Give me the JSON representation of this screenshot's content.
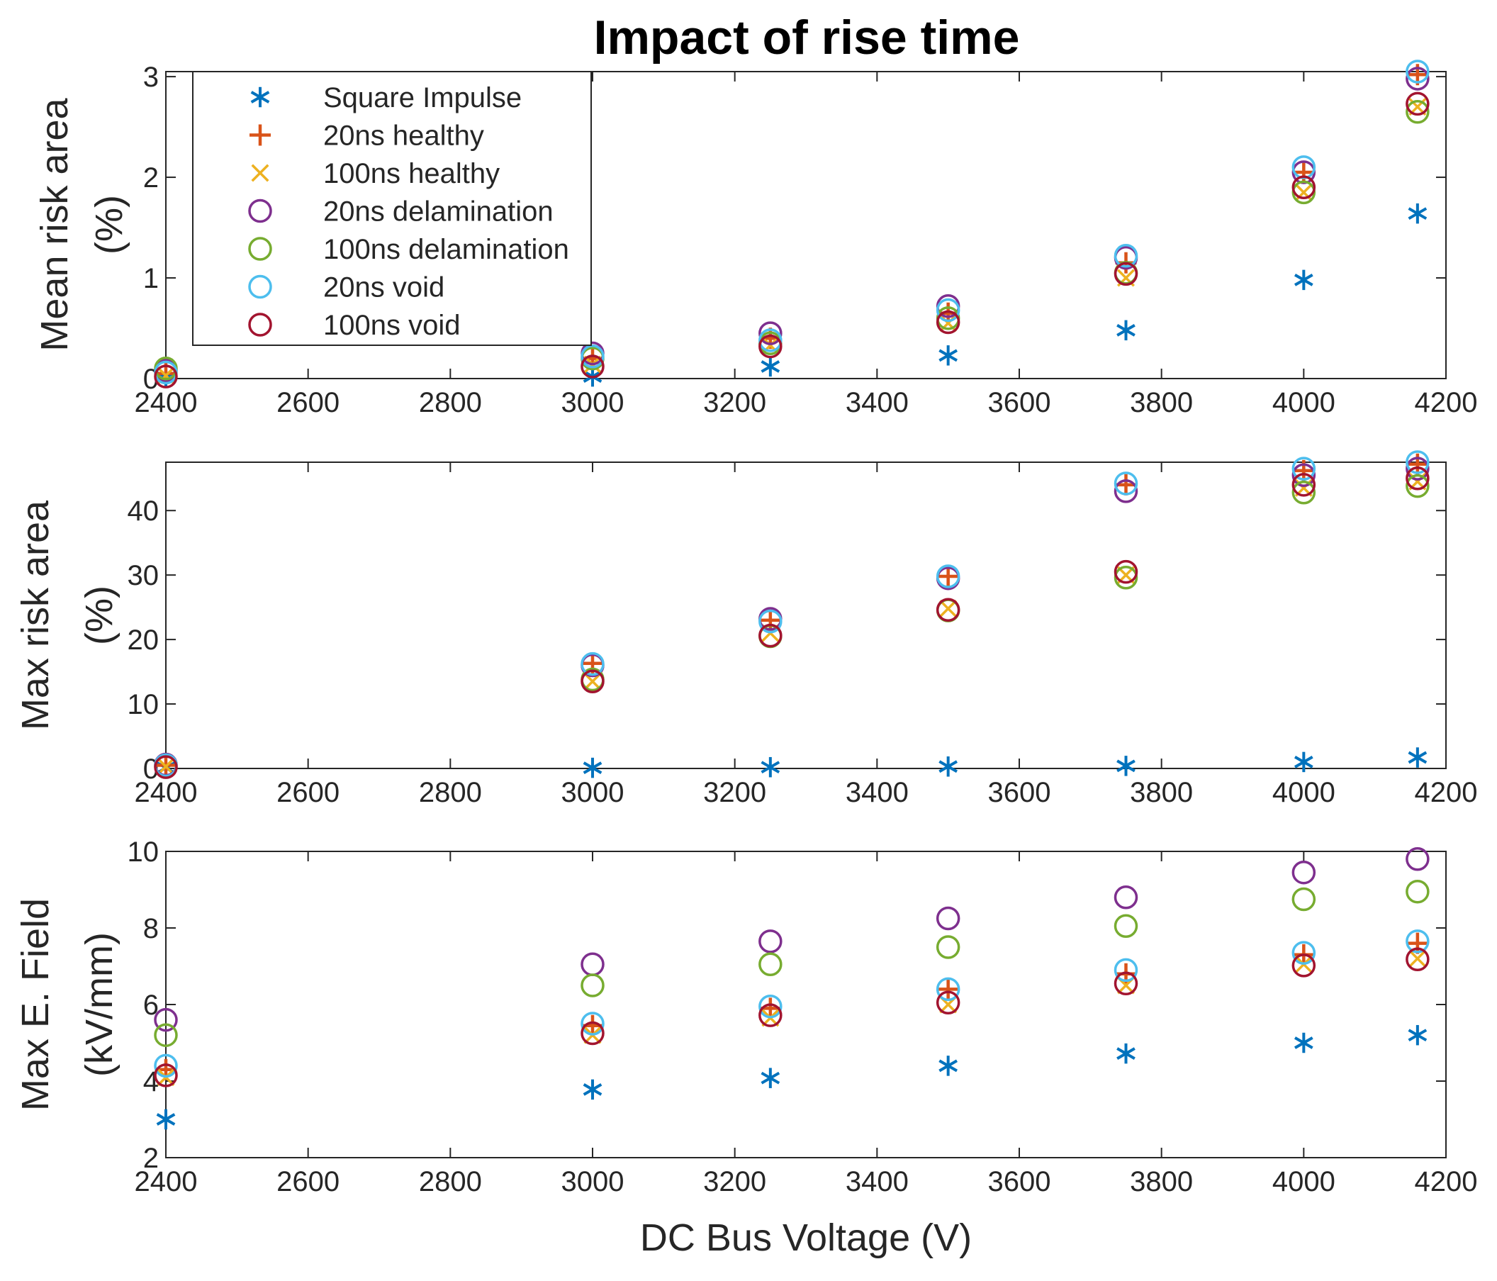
{
  "colors": {
    "square": "#0072bd",
    "h20": "#d95319",
    "h100": "#edb120",
    "d20": "#7e2f8e",
    "d100": "#77ac30",
    "v20": "#4dbeee",
    "v100": "#a2142f"
  },
  "chart_data": {
    "type": "scatter",
    "title": "Impact of rise time",
    "xlabel": "DC Bus Voltage (V)",
    "x": [
      2400,
      3000,
      3250,
      3500,
      3750,
      4000,
      4160
    ],
    "series_meta": [
      {
        "key": "square",
        "name": "Square Impulse",
        "marker": "asterisk"
      },
      {
        "key": "h20",
        "name": "20ns healthy",
        "marker": "plus"
      },
      {
        "key": "h100",
        "name": "100ns healthy",
        "marker": "x"
      },
      {
        "key": "d20",
        "name": "20ns delamination",
        "marker": "circle"
      },
      {
        "key": "d100",
        "name": "100ns delamination",
        "marker": "circle"
      },
      {
        "key": "v20",
        "name": "20ns void",
        "marker": "circle"
      },
      {
        "key": "v100",
        "name": "100ns void",
        "marker": "circle"
      }
    ],
    "subplots": [
      {
        "ylabel": [
          "Mean risk area",
          "(%)"
        ],
        "xlim": [
          2400,
          4200
        ],
        "ylim": [
          0,
          3.05
        ],
        "xticks": [
          2400,
          2600,
          2800,
          3000,
          3200,
          3400,
          3600,
          3800,
          4000,
          4200
        ],
        "yticks": [
          0,
          1,
          2,
          3
        ],
        "legend": "top-left",
        "series": {
          "square": [
            0.01,
            0.02,
            0.12,
            0.23,
            0.48,
            0.98,
            1.64
          ],
          "h20": [
            0.05,
            0.2,
            0.4,
            0.65,
            1.15,
            2.05,
            3.02
          ],
          "h100": [
            0.03,
            0.14,
            0.33,
            0.55,
            1.0,
            1.85,
            2.7
          ],
          "d20": [
            0.08,
            0.25,
            0.45,
            0.72,
            1.2,
            2.05,
            2.98
          ],
          "d100": [
            0.1,
            0.2,
            0.35,
            0.6,
            1.05,
            1.85,
            2.65
          ],
          "v20": [
            0.06,
            0.22,
            0.38,
            0.68,
            1.22,
            2.1,
            3.05
          ],
          "v100": [
            0.02,
            0.12,
            0.32,
            0.56,
            1.04,
            1.9,
            2.73
          ]
        }
      },
      {
        "ylabel": [
          "Max risk area",
          "(%)"
        ],
        "xlim": [
          2400,
          4200
        ],
        "ylim": [
          0,
          47.5
        ],
        "xticks": [
          2400,
          2600,
          2800,
          3000,
          3200,
          3400,
          3600,
          3800,
          4000,
          4200
        ],
        "yticks": [
          0,
          10,
          20,
          30,
          40
        ],
        "series": {
          "square": [
            0.1,
            0.1,
            0.2,
            0.3,
            0.4,
            1.0,
            1.7
          ],
          "h20": [
            0.5,
            16.3,
            23.0,
            29.8,
            44.0,
            46.2,
            47.2
          ],
          "h100": [
            0.3,
            13.5,
            21.0,
            24.8,
            30.0,
            43.5,
            44.5
          ],
          "d20": [
            0.6,
            16.0,
            23.2,
            29.5,
            43.0,
            45.5,
            46.5
          ],
          "d100": [
            0.3,
            13.8,
            20.5,
            24.5,
            29.6,
            42.8,
            43.8
          ],
          "v20": [
            0.5,
            16.2,
            22.8,
            29.8,
            44.2,
            46.5,
            47.5
          ],
          "v100": [
            0.2,
            13.5,
            20.6,
            24.6,
            30.5,
            44.0,
            45.0
          ]
        }
      },
      {
        "ylabel": [
          "Max E. Field",
          "(kV/mm)"
        ],
        "xlim": [
          2400,
          4200
        ],
        "ylim": [
          2,
          10
        ],
        "xticks": [
          2400,
          2600,
          2800,
          3000,
          3200,
          3400,
          3600,
          3800,
          4000,
          4200
        ],
        "yticks": [
          2,
          4,
          6,
          8,
          10
        ],
        "series": {
          "square": [
            3.0,
            3.78,
            4.08,
            4.4,
            4.72,
            5.0,
            5.2
          ],
          "h20": [
            4.3,
            5.45,
            5.9,
            6.4,
            6.8,
            7.3,
            7.6
          ],
          "h100": [
            4.1,
            5.2,
            5.65,
            6.0,
            6.5,
            7.05,
            7.2
          ],
          "d20": [
            5.6,
            7.05,
            7.65,
            8.25,
            8.8,
            9.45,
            9.8
          ],
          "d100": [
            5.2,
            6.5,
            7.05,
            7.5,
            8.05,
            8.75,
            8.95
          ],
          "v20": [
            4.4,
            5.5,
            5.95,
            6.4,
            6.9,
            7.35,
            7.65
          ],
          "v100": [
            4.15,
            5.25,
            5.72,
            6.05,
            6.55,
            7.02,
            7.18
          ]
        }
      }
    ]
  }
}
